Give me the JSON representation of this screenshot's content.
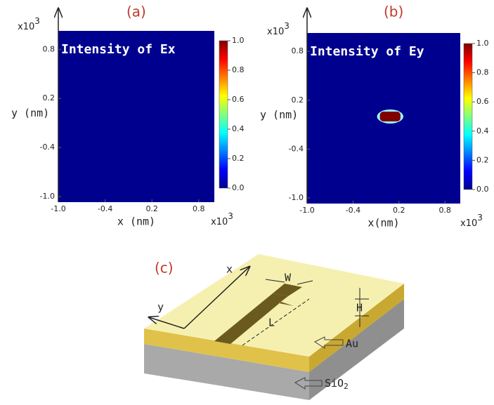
{
  "chart_data": [
    {
      "type": "heatmap",
      "panel_label": "(a)",
      "title": "Intensity of Ex",
      "xlabel": "x (nm)",
      "ylabel": "y (nm)",
      "x_scale": {
        "base": "x10",
        "exponent": "3"
      },
      "y_scale": {
        "base": "x10",
        "exponent": "3"
      },
      "xlim": [
        -1,
        1
      ],
      "ylim": [
        -1,
        1
      ],
      "xticks": [
        {
          "value": -1,
          "label": "-1.0"
        },
        -0.4,
        0.2,
        0.8
      ],
      "yticks": [
        {
          "value": -1,
          "label": "-1.0"
        },
        -0.4,
        0.2,
        0.8
      ],
      "colormap": "jet",
      "clim": [
        0,
        1
      ],
      "cticks": [
        {
          "value": 0,
          "label": "0.0"
        },
        0.2,
        0.4,
        0.6,
        0.8,
        {
          "value": 1,
          "label": "1.0"
        }
      ],
      "base_value": 0
    },
    {
      "type": "heatmap",
      "panel_label": "(b)",
      "title": "Intensity of Ey",
      "xlabel": "x(nm)",
      "ylabel": "y (nm)",
      "x_scale": {
        "base": "x10",
        "exponent": "3"
      },
      "y_scale": {
        "base": "x10",
        "exponent": "3"
      },
      "xlim": [
        -1,
        1
      ],
      "ylim": [
        -1,
        1
      ],
      "xticks": [
        {
          "value": -1,
          "label": "-1.0"
        },
        -0.4,
        0.2,
        0.8
      ],
      "yticks": [
        {
          "value": -1,
          "label": "-1.0"
        },
        -0.4,
        0.2,
        0.8
      ],
      "colormap": "jet",
      "clim": [
        0,
        1
      ],
      "cticks": [
        {
          "value": 0,
          "label": "0.0"
        },
        0.2,
        0.4,
        0.6,
        0.8,
        {
          "value": 1,
          "label": "1.0"
        }
      ],
      "base_value": 0,
      "spot": {
        "x": [
          -0.05,
          0.22
        ],
        "y": [
          -0.06,
          0.06
        ],
        "value": 1
      }
    }
  ],
  "diagram": {
    "panel_label": "(c)",
    "x_axis": "x",
    "y_axis": "y",
    "width": "W",
    "length": "L",
    "height": "H",
    "top_layer": "Au",
    "substrate": {
      "base": "SiO",
      "subscript": "2"
    }
  }
}
